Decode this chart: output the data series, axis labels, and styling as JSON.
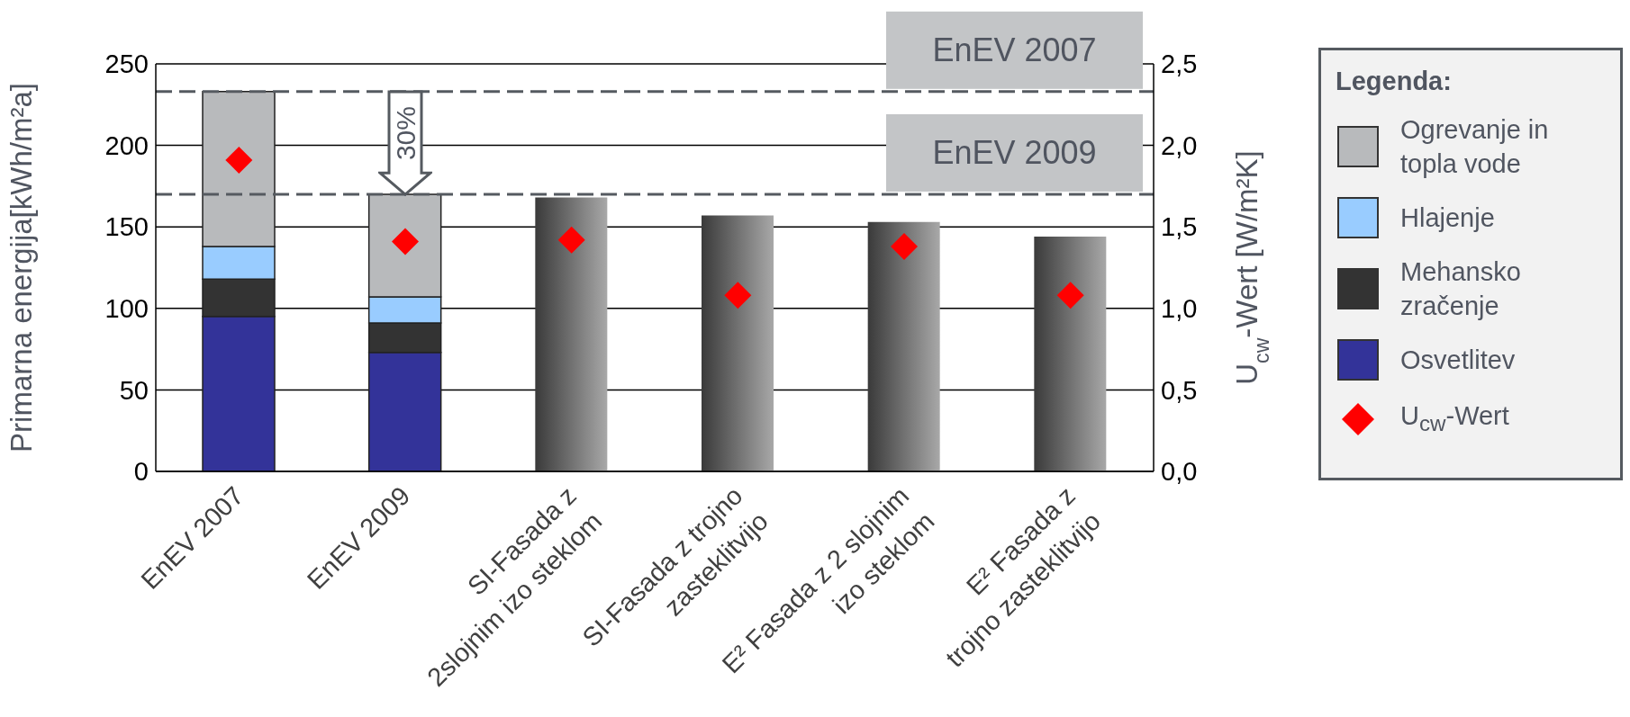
{
  "chart_data": {
    "type": "bar",
    "stacked": true,
    "legend_title": "Legenda:",
    "legend": "right",
    "ylabel": "Primarna energija[kWh/m²a]",
    "y2label": "U$_{cw}$-Wert [W/m²K]",
    "categories": [
      "EnEV 2007",
      "EnEV 2009",
      "SI-Fasada z\n2slojnim izo steklom",
      "SI-Fasada z trojno\nzasteklitvijo",
      "E² Fasada z 2 slojnim\nizo steklom",
      "E² Fasada z\ntrojno zasteklitvijo"
    ],
    "series": [
      {
        "name": "Osvetlitev",
        "color": "#333399",
        "values": [
          95,
          73,
          null,
          null,
          null,
          null
        ]
      },
      {
        "name": "Mehansko zračenje",
        "color": "#333333",
        "values": [
          23,
          18,
          null,
          null,
          null,
          null
        ]
      },
      {
        "name": "Hlajenje",
        "color": "#99ccff",
        "values": [
          20,
          16,
          null,
          null,
          null,
          null
        ]
      },
      {
        "name": "Ogrevanje in topla vode",
        "color": "#b8babc",
        "values": [
          95,
          63,
          null,
          null,
          null,
          null
        ]
      },
      {
        "color": "#3a3a3a",
        "values": [
          null,
          null,
          168,
          157,
          153,
          144
        ]
      },
      {
        "name": "U$_{cw}$-Wert",
        "type": "scatter",
        "axis": "y2",
        "color": "#ff0000",
        "marker": "diamond",
        "values": [
          1.91,
          1.41,
          1.42,
          1.08,
          1.38,
          1.08
        ]
      }
    ],
    "ylim": [
      0,
      250
    ],
    "yticks": [
      0,
      50,
      100,
      150,
      200,
      250
    ],
    "y2lim": [
      0,
      2.5
    ],
    "y2ticks": [
      {
        "value": 0,
        "label": "0,0"
      },
      {
        "value": 0.5,
        "label": "0,5"
      },
      {
        "value": 1,
        "label": "1,0"
      },
      {
        "value": 1.5,
        "label": "1,5"
      },
      {
        "value": 2,
        "label": "2,0"
      },
      {
        "value": 2.5,
        "label": "2,5"
      }
    ],
    "grid": "y",
    "ref_lines": [
      {
        "axis": "y",
        "value": 233,
        "label": "EnEV 2007",
        "color": "#555a60",
        "line_style": "dashed"
      },
      {
        "axis": "y",
        "value": 170,
        "label": "EnEV 2009",
        "color": "#555a60",
        "line_style": "dashed"
      }
    ],
    "annotations": [
      "30%"
    ]
  }
}
